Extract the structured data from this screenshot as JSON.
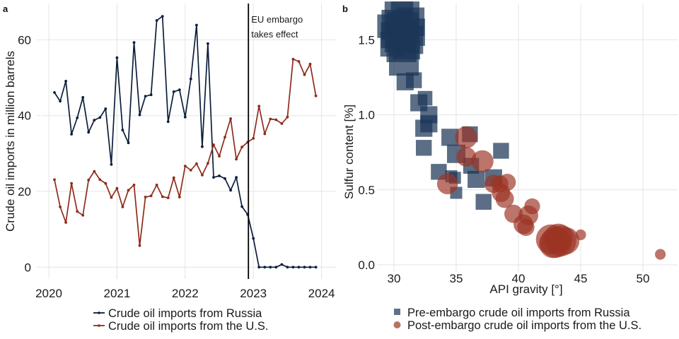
{
  "figure": {
    "panels": [
      "a",
      "b"
    ]
  },
  "colors": {
    "russia": "#0b1e3a",
    "us": "#8e2b1b",
    "russia_marker": "#1c3658",
    "us_marker": "#9c3424",
    "embargo_line": "#000000",
    "grid": "#e4e4e4"
  },
  "chart_data": [
    {
      "panel": "a",
      "type": "line",
      "title": "",
      "xlabel": "",
      "ylabel": "Crude oil imports in million barrels",
      "x_ticks": [
        "2020",
        "2021",
        "2022",
        "2023",
        "2024"
      ],
      "y_ticks": [
        "0",
        "20",
        "40",
        "60"
      ],
      "xlim": [
        "2020-01",
        "2024-03"
      ],
      "ylim": [
        -2,
        70
      ],
      "grid": true,
      "legend_position": "bottom",
      "annotation": {
        "date": "2022-12-05",
        "lines": [
          "EU embargo",
          "takes effect"
        ]
      },
      "x": [
        "2020-02",
        "2020-03",
        "2020-04",
        "2020-05",
        "2020-06",
        "2020-07",
        "2020-08",
        "2020-09",
        "2020-10",
        "2020-11",
        "2020-12",
        "2021-01",
        "2021-02",
        "2021-03",
        "2021-04",
        "2021-05",
        "2021-06",
        "2021-07",
        "2021-08",
        "2021-09",
        "2021-10",
        "2021-11",
        "2021-12",
        "2022-01",
        "2022-02",
        "2022-03",
        "2022-04",
        "2022-05",
        "2022-06",
        "2022-07",
        "2022-08",
        "2022-09",
        "2022-10",
        "2022-11",
        "2022-12",
        "2023-01",
        "2023-02",
        "2023-03",
        "2023-04",
        "2023-05",
        "2023-06",
        "2023-07",
        "2023-08",
        "2023-09",
        "2023-10",
        "2023-11",
        "2023-12"
      ],
      "series": [
        {
          "name": "Crude oil imports from Russia",
          "key": "russia",
          "values": [
            46.1,
            43.8,
            49.1,
            35.1,
            39.4,
            44.8,
            35.6,
            38.8,
            39.5,
            41.8,
            27.1,
            55.3,
            36.2,
            32.8,
            59.3,
            40.2,
            45.1,
            45.5,
            65.1,
            66.2,
            38.4,
            46.3,
            46.8,
            39.6,
            49.7,
            63.9,
            31.8,
            59.0,
            23.7,
            24.1,
            23.4,
            20.3,
            23.7,
            16.0,
            13.9,
            7.6,
            0,
            0,
            0,
            0,
            0.7,
            0,
            0,
            0,
            0,
            0,
            0
          ]
        },
        {
          "name": "Crude oil imports from the U.S.",
          "key": "us",
          "values": [
            23.1,
            15.9,
            11.8,
            22.1,
            14.7,
            13.7,
            23.0,
            25.3,
            23.1,
            22.1,
            18.4,
            20.8,
            15.9,
            20.3,
            21.7,
            5.7,
            18.5,
            18.8,
            21.7,
            18.6,
            18.3,
            23.6,
            18.5,
            26.7,
            25.6,
            27.3,
            24.3,
            27.4,
            32.3,
            29.3,
            34.3,
            39.2,
            28.5,
            31.7,
            33.0,
            34.0,
            42.5,
            35.2,
            39.1,
            38.9,
            37.9,
            39.6,
            54.9,
            54.3,
            50.8,
            53.6,
            45.2
          ]
        }
      ]
    },
    {
      "panel": "b",
      "type": "scatter",
      "title": "",
      "xlabel": "API gravity [°]",
      "ylabel": "Sulfur content [%]",
      "x_ticks": [
        "30",
        "35",
        "40",
        "45",
        "50"
      ],
      "y_ticks": [
        "0.0",
        "0.5",
        "1.0",
        "1.5"
      ],
      "xlim": [
        28.4,
        52.6
      ],
      "ylim": [
        -0.01,
        1.72
      ],
      "grid": true,
      "legend_position": "bottom",
      "series": [
        {
          "name": "Pre-embargo crude oil imports from Russia",
          "key": "russia",
          "marker": "square",
          "points": [
            {
              "x": 30.4,
              "y": 1.66,
              "size": 1.8
            },
            {
              "x": 30.9,
              "y": 1.66,
              "size": 1.8
            },
            {
              "x": 31.3,
              "y": 1.62,
              "size": 1.8
            },
            {
              "x": 30.2,
              "y": 1.6,
              "size": 1.9
            },
            {
              "x": 29.6,
              "y": 1.59,
              "size": 1.4
            },
            {
              "x": 30.7,
              "y": 1.58,
              "size": 2.0
            },
            {
              "x": 31.4,
              "y": 1.55,
              "size": 1.7
            },
            {
              "x": 30.0,
              "y": 1.53,
              "size": 1.6
            },
            {
              "x": 30.5,
              "y": 1.52,
              "size": 2.0
            },
            {
              "x": 31.2,
              "y": 1.5,
              "size": 1.8
            },
            {
              "x": 29.9,
              "y": 1.47,
              "size": 1.5
            },
            {
              "x": 30.6,
              "y": 1.45,
              "size": 1.9
            },
            {
              "x": 31.0,
              "y": 1.46,
              "size": 1.7
            },
            {
              "x": 30.8,
              "y": 1.36,
              "size": 1.9
            },
            {
              "x": 30.9,
              "y": 1.22,
              "size": 0.9
            },
            {
              "x": 31.6,
              "y": 1.23,
              "size": 0.8
            },
            {
              "x": 32.5,
              "y": 1.11,
              "size": 0.7
            },
            {
              "x": 32.0,
              "y": 1.08,
              "size": 0.9
            },
            {
              "x": 32.8,
              "y": 1.0,
              "size": 0.9
            },
            {
              "x": 32.8,
              "y": 0.94,
              "size": 0.9
            },
            {
              "x": 32.4,
              "y": 0.91,
              "size": 0.9
            },
            {
              "x": 32.4,
              "y": 0.78,
              "size": 0.8
            },
            {
              "x": 34.5,
              "y": 0.85,
              "size": 0.9
            },
            {
              "x": 36.1,
              "y": 0.87,
              "size": 0.8
            },
            {
              "x": 38.6,
              "y": 0.76,
              "size": 0.8
            },
            {
              "x": 35.0,
              "y": 0.74,
              "size": 1.0
            },
            {
              "x": 36.2,
              "y": 0.66,
              "size": 0.8
            },
            {
              "x": 33.6,
              "y": 0.62,
              "size": 0.8
            },
            {
              "x": 34.6,
              "y": 0.59,
              "size": 0.5
            },
            {
              "x": 34.9,
              "y": 0.58,
              "size": 0.5
            },
            {
              "x": 36.6,
              "y": 0.57,
              "size": 0.9
            },
            {
              "x": 38.0,
              "y": 0.58,
              "size": 0.9
            },
            {
              "x": 35.0,
              "y": 0.48,
              "size": 0.5
            },
            {
              "x": 37.2,
              "y": 0.42,
              "size": 0.8
            }
          ]
        },
        {
          "name": "Post-embargo crude oil imports from the U.S.",
          "key": "us",
          "marker": "circle",
          "points": [
            {
              "x": 35.8,
              "y": 0.85,
              "size": 1.3
            },
            {
              "x": 35.8,
              "y": 0.72,
              "size": 1.1
            },
            {
              "x": 37.1,
              "y": 0.69,
              "size": 1.3
            },
            {
              "x": 34.3,
              "y": 0.54,
              "size": 1.2
            },
            {
              "x": 38.0,
              "y": 0.54,
              "size": 1.0
            },
            {
              "x": 38.5,
              "y": 0.54,
              "size": 0.9
            },
            {
              "x": 39.1,
              "y": 0.55,
              "size": 0.9
            },
            {
              "x": 38.6,
              "y": 0.48,
              "size": 1.0
            },
            {
              "x": 38.9,
              "y": 0.44,
              "size": 1.0
            },
            {
              "x": 39.6,
              "y": 0.34,
              "size": 1.0
            },
            {
              "x": 41.1,
              "y": 0.39,
              "size": 0.8
            },
            {
              "x": 40.8,
              "y": 0.33,
              "size": 1.1
            },
            {
              "x": 40.4,
              "y": 0.27,
              "size": 1.1
            },
            {
              "x": 40.6,
              "y": 0.25,
              "size": 0.9
            },
            {
              "x": 42.6,
              "y": 0.17,
              "size": 1.9
            },
            {
              "x": 43.0,
              "y": 0.15,
              "size": 2.0
            },
            {
              "x": 43.4,
              "y": 0.16,
              "size": 2.0
            },
            {
              "x": 43.8,
              "y": 0.16,
              "size": 1.7
            },
            {
              "x": 42.8,
              "y": 0.14,
              "size": 1.8
            },
            {
              "x": 43.2,
              "y": 0.18,
              "size": 1.8
            },
            {
              "x": 45.0,
              "y": 0.2,
              "size": 0.4
            },
            {
              "x": 51.4,
              "y": 0.07,
              "size": 0.4
            }
          ]
        }
      ]
    }
  ]
}
